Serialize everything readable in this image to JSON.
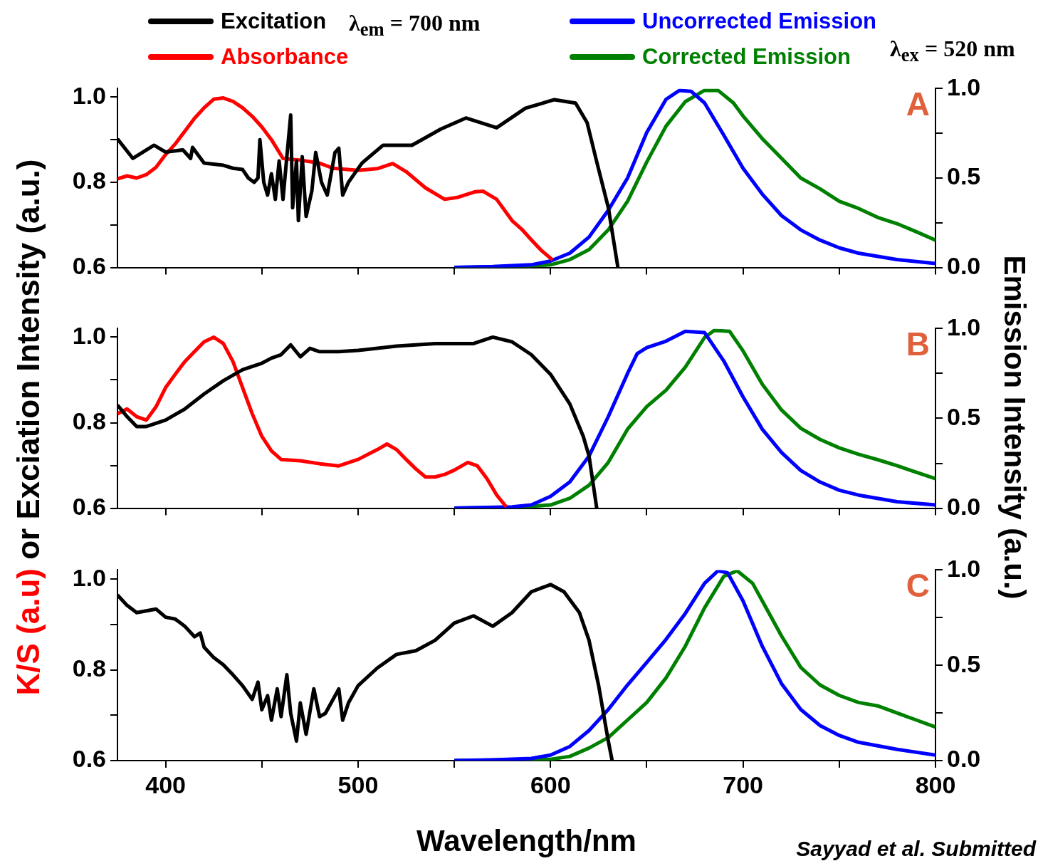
{
  "chart_data": [
    {
      "type": "line",
      "legend": "top",
      "tick_labels": "y",
      "grid": false,
      "xlim": [
        375,
        800
      ],
      "xticks": [
        400,
        {
          "value": 450,
          "label": null
        },
        500,
        {
          "value": 550,
          "label": null
        },
        600,
        {
          "value": 650,
          "label": null
        },
        700,
        {
          "value": 750,
          "label": null
        },
        800
      ],
      "ylim": [
        0.6,
        1.02
      ],
      "yticks": [
        {
          "value": 0.6,
          "label": "0.6"
        },
        {
          "value": 0.7,
          "label": null
        },
        {
          "value": 0.8,
          "label": "0.8"
        },
        {
          "value": 0.9,
          "label": null
        },
        {
          "value": 1,
          "label": "1.0"
        }
      ],
      "y2lim": [
        0,
        1
      ],
      "y2ticks": [
        {
          "value": 0,
          "label": "0.0"
        },
        {
          "value": 0.25,
          "label": null
        },
        {
          "value": 0.5,
          "label": "0.5"
        },
        {
          "value": 0.75,
          "label": null
        },
        {
          "value": 1,
          "label": "1.0"
        }
      ],
      "annotations": [
        "A",
        "λ$_{em}$ = 700 nm",
        "λ$_{ex}$ = 520 nm"
      ],
      "series": [
        {
          "name": "Excitation",
          "color": "#000000",
          "x": [
            375,
            383,
            394,
            400,
            409,
            413,
            414,
            420,
            430,
            435,
            440,
            443,
            446,
            448,
            449,
            451,
            453,
            455,
            457,
            459,
            461,
            463,
            465,
            466,
            468,
            469,
            471,
            473,
            476,
            478,
            481,
            484,
            486,
            488,
            490,
            492,
            495,
            502,
            513,
            528,
            543,
            556,
            572,
            587,
            602,
            613,
            619,
            624,
            630,
            635
          ],
          "values": [
            0.902,
            0.856,
            0.887,
            0.871,
            0.876,
            0.856,
            0.882,
            0.845,
            0.84,
            0.833,
            0.83,
            0.81,
            0.8,
            0.81,
            0.9,
            0.8,
            0.77,
            0.82,
            0.76,
            0.85,
            0.76,
            0.86,
            0.958,
            0.74,
            0.85,
            0.71,
            0.86,
            0.72,
            0.78,
            0.87,
            0.8,
            0.77,
            0.82,
            0.87,
            0.88,
            0.77,
            0.8,
            0.845,
            0.887,
            0.887,
            0.925,
            0.951,
            0.928,
            0.974,
            0.994,
            0.986,
            0.94,
            0.848,
            0.741,
            0.6
          ]
        },
        {
          "name": "Absorbance",
          "color": "#ff0000",
          "x": [
            375,
            380,
            385,
            390,
            395,
            400,
            405,
            410,
            415,
            420,
            425,
            430,
            435,
            440,
            445,
            450,
            455,
            461,
            470,
            480,
            487,
            500,
            510,
            518,
            525,
            535,
            545,
            552,
            561,
            565,
            572,
            580,
            585,
            590,
            595,
            601
          ],
          "values": [
            0.808,
            0.815,
            0.81,
            0.818,
            0.835,
            0.865,
            0.89,
            0.92,
            0.95,
            0.975,
            0.995,
            0.998,
            0.99,
            0.975,
            0.955,
            0.93,
            0.9,
            0.856,
            0.852,
            0.845,
            0.833,
            0.828,
            0.832,
            0.844,
            0.825,
            0.787,
            0.76,
            0.765,
            0.778,
            0.779,
            0.76,
            0.71,
            0.69,
            0.665,
            0.641,
            0.618
          ]
        },
        {
          "name": "Uncorrected Emission",
          "color": "#0000ff",
          "axis": "y2",
          "x": [
            550,
            570,
            590,
            600,
            610,
            620,
            630,
            640,
            650,
            660,
            667,
            673,
            680,
            690,
            700,
            710,
            720,
            730,
            740,
            750,
            760,
            780,
            800
          ],
          "values": [
            0,
            0.005,
            0.015,
            0.036,
            0.08,
            0.17,
            0.32,
            0.5,
            0.755,
            0.94,
            0.99,
            0.985,
            0.92,
            0.74,
            0.555,
            0.41,
            0.29,
            0.21,
            0.153,
            0.11,
            0.08,
            0.044,
            0.022
          ]
        },
        {
          "name": "Corrected Emission",
          "color": "#008000",
          "axis": "y2",
          "x": [
            550,
            580,
            600,
            610,
            620,
            630,
            640,
            650,
            660,
            670,
            680,
            687,
            695,
            700,
            710,
            720,
            730,
            740,
            750,
            760,
            770,
            780,
            790,
            800
          ],
          "values": [
            0,
            0.003,
            0.015,
            0.044,
            0.1,
            0.21,
            0.37,
            0.59,
            0.79,
            0.927,
            0.99,
            0.99,
            0.92,
            0.847,
            0.72,
            0.61,
            0.5,
            0.44,
            0.37,
            0.33,
            0.28,
            0.245,
            0.2,
            0.153
          ]
        }
      ]
    },
    {
      "type": "line",
      "tick_labels": "y",
      "grid": false,
      "ylabel": "K/S (a.u) or Exciation Intensity (a.u.)",
      "y2label": "Emission Intensity (a.u.)",
      "xlim": [
        375,
        800
      ],
      "xticks": [
        400,
        {
          "value": 450,
          "label": null
        },
        500,
        {
          "value": 550,
          "label": null
        },
        600,
        {
          "value": 650,
          "label": null
        },
        700,
        {
          "value": 750,
          "label": null
        },
        800
      ],
      "ylim": [
        0.6,
        1.02
      ],
      "yticks": [
        {
          "value": 0.6,
          "label": "0.6"
        },
        {
          "value": 0.7,
          "label": null
        },
        {
          "value": 0.8,
          "label": "0.8"
        },
        {
          "value": 0.9,
          "label": null
        },
        {
          "value": 1,
          "label": "1.0"
        }
      ],
      "y2lim": [
        0,
        1
      ],
      "y2ticks": [
        {
          "value": 0,
          "label": "0.0"
        },
        {
          "value": 0.25,
          "label": null
        },
        {
          "value": 0.5,
          "label": "0.5"
        },
        {
          "value": 0.75,
          "label": null
        },
        {
          "value": 1,
          "label": "1.0"
        }
      ],
      "annotations": [
        "B"
      ],
      "series": [
        {
          "color": "#000000",
          "x": [
            375,
            380,
            385,
            390,
            400,
            410,
            420,
            430,
            440,
            450,
            455,
            460,
            465,
            470,
            475,
            480,
            490,
            500,
            520,
            540,
            560,
            570,
            580,
            590,
            600,
            610,
            617,
            620,
            624
          ],
          "values": [
            0.841,
            0.814,
            0.791,
            0.791,
            0.806,
            0.832,
            0.867,
            0.898,
            0.924,
            0.939,
            0.951,
            0.959,
            0.982,
            0.954,
            0.974,
            0.966,
            0.966,
            0.969,
            0.979,
            0.985,
            0.985,
            1.0,
            0.989,
            0.959,
            0.913,
            0.844,
            0.768,
            0.722,
            0.6
          ]
        },
        {
          "color": "#ff0000",
          "x": [
            375,
            380,
            385,
            390,
            395,
            400,
            405,
            410,
            415,
            420,
            425,
            430,
            435,
            440,
            445,
            450,
            455,
            460,
            470,
            480,
            490,
            500,
            510,
            515,
            520,
            525,
            530,
            535,
            540,
            545,
            550,
            557,
            562,
            567,
            572,
            577
          ],
          "values": [
            0.821,
            0.832,
            0.814,
            0.806,
            0.837,
            0.882,
            0.913,
            0.943,
            0.966,
            0.989,
            1.0,
            0.985,
            0.943,
            0.882,
            0.821,
            0.768,
            0.734,
            0.714,
            0.711,
            0.704,
            0.699,
            0.714,
            0.737,
            0.75,
            0.737,
            0.714,
            0.692,
            0.673,
            0.673,
            0.679,
            0.689,
            0.707,
            0.699,
            0.669,
            0.631,
            0.603
          ]
        },
        {
          "color": "#0000ff",
          "axis": "y2",
          "x": [
            550,
            580,
            590,
            600,
            610,
            620,
            630,
            640,
            645,
            650,
            660,
            670,
            680,
            690,
            700,
            710,
            720,
            730,
            740,
            750,
            760,
            780,
            800
          ],
          "values": [
            0,
            0.007,
            0.018,
            0.066,
            0.146,
            0.29,
            0.51,
            0.75,
            0.86,
            0.894,
            0.93,
            0.985,
            0.978,
            0.82,
            0.62,
            0.44,
            0.31,
            0.21,
            0.146,
            0.1,
            0.073,
            0.036,
            0.018
          ]
        },
        {
          "color": "#008000",
          "axis": "y2",
          "x": [
            550,
            580,
            600,
            610,
            620,
            630,
            640,
            650,
            660,
            670,
            680,
            685,
            693,
            700,
            710,
            720,
            730,
            740,
            750,
            760,
            770,
            780,
            790,
            800
          ],
          "values": [
            0,
            0.004,
            0.018,
            0.055,
            0.128,
            0.255,
            0.44,
            0.566,
            0.657,
            0.785,
            0.95,
            0.99,
            0.985,
            0.876,
            0.69,
            0.547,
            0.445,
            0.383,
            0.336,
            0.3,
            0.27,
            0.237,
            0.2,
            0.164
          ]
        }
      ]
    },
    {
      "type": "line",
      "grid": false,
      "xlabel": "Wavelength/nm",
      "xlim": [
        375,
        800
      ],
      "xticks": [
        400,
        {
          "value": 450,
          "label": null
        },
        500,
        {
          "value": 550,
          "label": null
        },
        600,
        {
          "value": 650,
          "label": null
        },
        700,
        {
          "value": 750,
          "label": null
        },
        800
      ],
      "ylim": [
        0.6,
        1.02
      ],
      "yticks": [
        {
          "value": 0.6,
          "label": "0.6"
        },
        {
          "value": 0.7,
          "label": null
        },
        {
          "value": 0.8,
          "label": "0.8"
        },
        {
          "value": 0.9,
          "label": null
        },
        {
          "value": 1,
          "label": "1.0"
        }
      ],
      "y2lim": [
        0,
        1
      ],
      "y2ticks": [
        {
          "value": 0,
          "label": "0.0"
        },
        {
          "value": 0.25,
          "label": null
        },
        {
          "value": 0.5,
          "label": "0.5"
        },
        {
          "value": 0.75,
          "label": null
        },
        {
          "value": 1,
          "label": "1.0"
        }
      ],
      "annotations": [
        "C",
        "Sayyad et al. Submitted"
      ],
      "series": [
        {
          "color": "#000000",
          "x": [
            375,
            380,
            385,
            390,
            395,
            400,
            405,
            410,
            415,
            418,
            420,
            425,
            430,
            435,
            440,
            445,
            448,
            450,
            453,
            455,
            458,
            460,
            463,
            465,
            468,
            470,
            473,
            477,
            480,
            483,
            486,
            490,
            492,
            495,
            500,
            510,
            520,
            530,
            540,
            550,
            560,
            570,
            580,
            590,
            600,
            607,
            615,
            620,
            625,
            630,
            632
          ],
          "values": [
            0.965,
            0.942,
            0.926,
            0.93,
            0.934,
            0.916,
            0.912,
            0.896,
            0.873,
            0.881,
            0.85,
            0.827,
            0.811,
            0.789,
            0.765,
            0.735,
            0.773,
            0.712,
            0.743,
            0.689,
            0.758,
            0.697,
            0.789,
            0.704,
            0.643,
            0.727,
            0.658,
            0.758,
            0.697,
            0.704,
            0.727,
            0.758,
            0.689,
            0.727,
            0.765,
            0.804,
            0.834,
            0.842,
            0.865,
            0.903,
            0.919,
            0.896,
            0.926,
            0.972,
            0.988,
            0.972,
            0.926,
            0.865,
            0.765,
            0.643,
            0.6
          ]
        },
        {
          "color": "#0000ff",
          "axis": "y2",
          "x": [
            550,
            570,
            590,
            600,
            610,
            620,
            630,
            640,
            650,
            660,
            670,
            680,
            687,
            692,
            700,
            710,
            720,
            730,
            740,
            750,
            760,
            780,
            800
          ],
          "values": [
            0,
            0.004,
            0.011,
            0.029,
            0.074,
            0.158,
            0.268,
            0.397,
            0.515,
            0.636,
            0.772,
            0.93,
            0.996,
            0.985,
            0.838,
            0.6,
            0.404,
            0.268,
            0.184,
            0.132,
            0.096,
            0.059,
            0.029
          ]
        },
        {
          "color": "#008000",
          "axis": "y2",
          "x": [
            550,
            600,
            610,
            620,
            630,
            640,
            650,
            660,
            670,
            680,
            690,
            697,
            705,
            710,
            720,
            730,
            740,
            750,
            760,
            770,
            780,
            790,
            800
          ],
          "values": [
            0,
            0.007,
            0.022,
            0.066,
            0.121,
            0.213,
            0.305,
            0.434,
            0.6,
            0.801,
            0.967,
            0.996,
            0.93,
            0.838,
            0.654,
            0.489,
            0.397,
            0.342,
            0.305,
            0.287,
            0.25,
            0.213,
            0.176
          ]
        }
      ]
    }
  ]
}
